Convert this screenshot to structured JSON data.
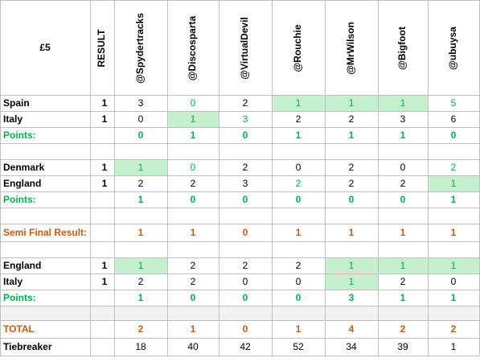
{
  "header": {
    "corner": "£5",
    "result": "RESULT",
    "players": [
      "@Spydertracks",
      "@Discosparta",
      "@VirtualDevil",
      "@Rouchie",
      "@MrWilson",
      "@Bigfoot",
      "@ubuysa"
    ]
  },
  "rows": [
    {
      "label": "Spain",
      "result": 1,
      "cells": [
        3,
        0,
        2,
        1,
        1,
        1,
        5
      ],
      "highlight": [
        3,
        4,
        5
      ],
      "green": [
        1,
        3,
        4,
        5,
        6
      ]
    },
    {
      "label": "Italy",
      "result": 1,
      "cells": [
        0,
        1,
        3,
        2,
        2,
        3,
        6
      ],
      "highlight": [
        1
      ],
      "green": [
        1,
        2
      ]
    },
    {
      "label": "Points:",
      "cells": [
        0,
        1,
        0,
        1,
        1,
        1,
        0
      ],
      "color": "#00b050",
      "bold": true
    },
    {
      "label": "Denmark",
      "result": 1,
      "cells": [
        1,
        0,
        2,
        0,
        2,
        0,
        2
      ],
      "highlight": [
        0
      ],
      "green": [
        0,
        1,
        6
      ]
    },
    {
      "label": "England",
      "result": 1,
      "cells": [
        2,
        2,
        3,
        2,
        2,
        2,
        1
      ],
      "highlight": [
        6
      ],
      "green": [
        3,
        6
      ]
    },
    {
      "label": "Points:",
      "cells": [
        1,
        0,
        0,
        0,
        0,
        0,
        1
      ],
      "color": "#00b050",
      "bold": true
    },
    {
      "label": "Semi Final Result:",
      "cells": [
        1,
        1,
        0,
        1,
        1,
        1,
        1
      ],
      "color": "#c55a11",
      "bold": true
    },
    {
      "label": "England",
      "result": 1,
      "cells": [
        1,
        2,
        2,
        2,
        1,
        1,
        1
      ],
      "highlight": [
        0,
        4,
        5,
        6
      ],
      "green": [
        0,
        4,
        5,
        6
      ]
    },
    {
      "label": "Italy",
      "result": 1,
      "cells": [
        2,
        2,
        0,
        0,
        1,
        2,
        0
      ],
      "highlight": [
        4
      ],
      "green": [
        4
      ]
    },
    {
      "label": "Points:",
      "cells": [
        1,
        0,
        0,
        0,
        3,
        1,
        1
      ],
      "color": "#00b050",
      "bold": true
    },
    {
      "label": "TOTAL",
      "cells": [
        2,
        1,
        0,
        1,
        4,
        2,
        2
      ],
      "color": "#c55a11",
      "bold": true
    },
    {
      "label": "Tiebreaker",
      "cells": [
        18,
        40,
        42,
        52,
        34,
        39,
        1
      ]
    }
  ]
}
